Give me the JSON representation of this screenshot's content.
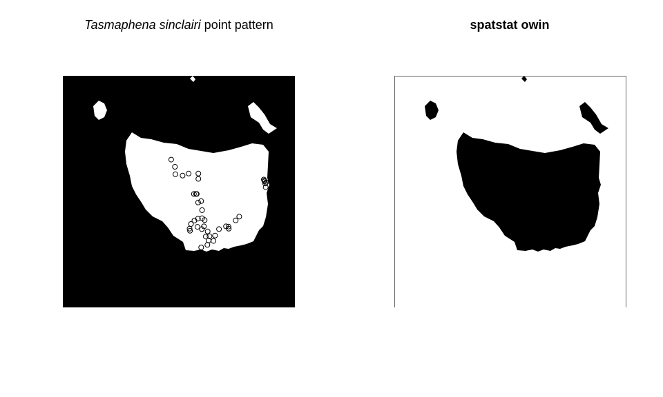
{
  "chart_data": [
    {
      "type": "scatter",
      "title_italic": "Tasmaphena sinclairi",
      "title_rest": " point pattern",
      "colors": {
        "background": "#000000",
        "land": "#ffffff",
        "points": "#000000"
      },
      "points": [
        [
          0.467,
          0.362
        ],
        [
          0.485,
          0.425
        ],
        [
          0.483,
          0.393
        ],
        [
          0.516,
          0.431
        ],
        [
          0.542,
          0.422
        ],
        [
          0.584,
          0.422
        ],
        [
          0.584,
          0.445
        ],
        [
          0.565,
          0.51
        ],
        [
          0.577,
          0.51
        ],
        [
          0.574,
          0.51
        ],
        [
          0.583,
          0.547
        ],
        [
          0.596,
          0.541
        ],
        [
          0.6,
          0.58
        ],
        [
          0.552,
          0.64
        ],
        [
          0.582,
          0.617
        ],
        [
          0.567,
          0.625
        ],
        [
          0.611,
          0.623
        ],
        [
          0.6,
          0.615
        ],
        [
          0.608,
          0.65
        ],
        [
          0.58,
          0.652
        ],
        [
          0.599,
          0.662
        ],
        [
          0.546,
          0.66
        ],
        [
          0.548,
          0.669
        ],
        [
          0.624,
          0.672
        ],
        [
          0.632,
          0.693
        ],
        [
          0.616,
          0.694
        ],
        [
          0.656,
          0.69
        ],
        [
          0.673,
          0.662
        ],
        [
          0.703,
          0.65
        ],
        [
          0.714,
          0.651
        ],
        [
          0.715,
          0.66
        ],
        [
          0.745,
          0.624
        ],
        [
          0.76,
          0.608
        ],
        [
          0.623,
          0.73
        ],
        [
          0.649,
          0.713
        ],
        [
          0.596,
          0.741
        ],
        [
          0.628,
          0.711
        ],
        [
          0.866,
          0.448
        ],
        [
          0.87,
          0.456
        ],
        [
          0.872,
          0.465
        ],
        [
          0.868,
          0.452
        ],
        [
          0.876,
          0.46
        ],
        [
          0.874,
          0.481
        ]
      ]
    },
    {
      "type": "heatmap",
      "title": "spatstat owin",
      "colors": {
        "background": "#ffffff",
        "land": "#000000",
        "border": "#666666"
      }
    }
  ]
}
